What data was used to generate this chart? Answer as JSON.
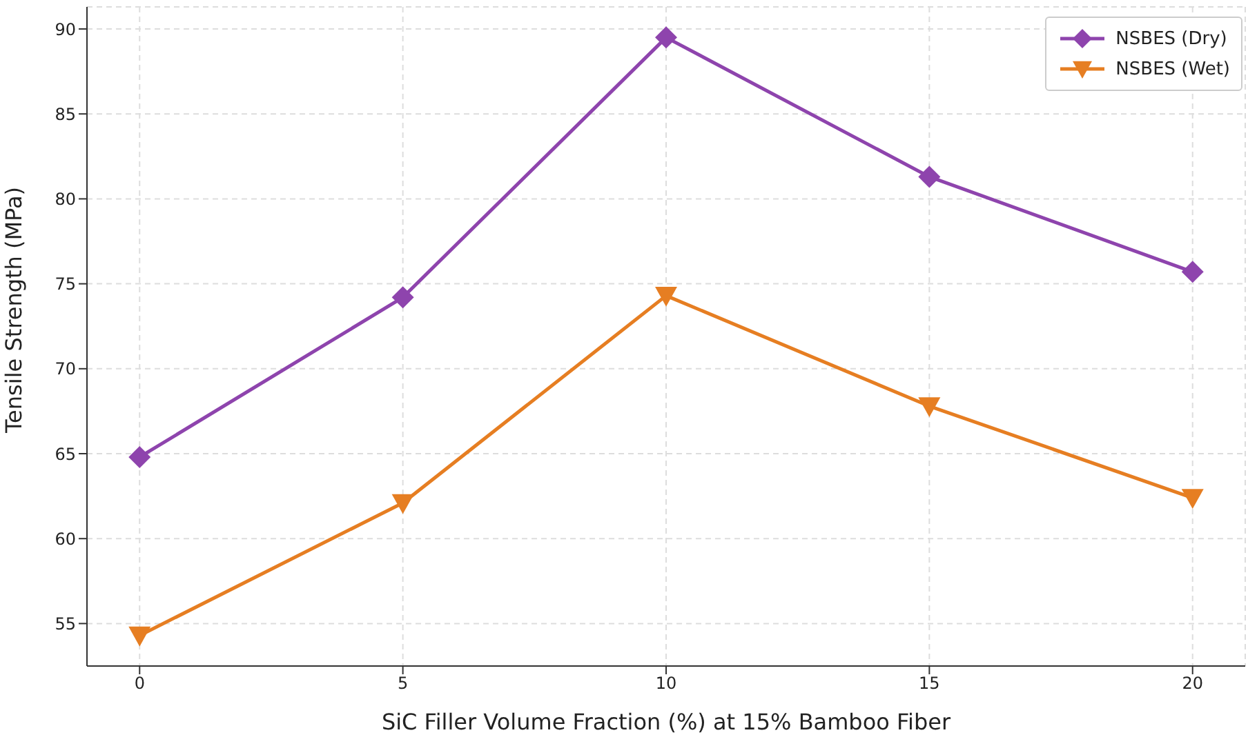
{
  "chart_data": {
    "type": "line",
    "xlabel": "SiC Filler Volume Fraction (%) at 15% Bamboo Fiber",
    "ylabel": "Tensile Strength (MPa)",
    "x": [
      0,
      5,
      10,
      15,
      20
    ],
    "series": [
      {
        "name": "NSBES (Dry)",
        "color": "#8e44ad",
        "marker": "diamond",
        "values": [
          64.8,
          74.2,
          89.5,
          81.3,
          75.7
        ]
      },
      {
        "name": "NSBES (Wet)",
        "color": "#e67e22",
        "marker": "triangle",
        "values": [
          54.3,
          62.1,
          74.3,
          67.8,
          62.4
        ]
      }
    ],
    "xlim": [
      -1,
      21
    ],
    "xticks": [
      0,
      5,
      10,
      15,
      20
    ],
    "ylim": [
      52.5,
      91.3
    ],
    "yticks": [
      55,
      60,
      65,
      70,
      75,
      80,
      85,
      90
    ],
    "grid": true,
    "legend": "top right",
    "line_style": "solid"
  }
}
